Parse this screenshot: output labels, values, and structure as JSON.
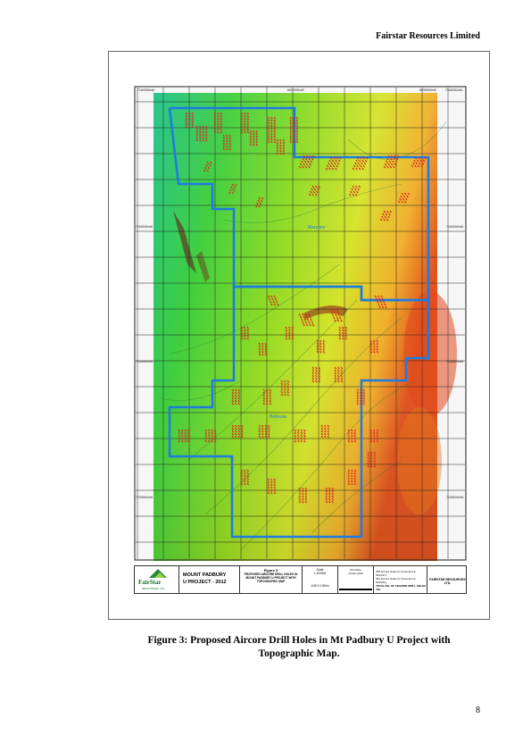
{
  "header": {
    "company": "Fairstar Resources Limited"
  },
  "map": {
    "grid_labels": {
      "top_left": "7160000mN",
      "top_mid": "6910000mE",
      "top_right_e": "6930000mE",
      "top_right": "7160000mN",
      "left_1": "7150000mN",
      "right_1": "7150000mN",
      "left_2": "7140000mN",
      "right_2": "7140000mN",
      "left_3": "7130000mN",
      "right_3": "7130000mN",
      "area_north": "Marymia",
      "area_south": "Bellevue"
    },
    "colors": {
      "tenement": "#1e7be0",
      "drill_hole": "#d9231f"
    }
  },
  "title_block": {
    "logo_name": "FairStar",
    "logo_sub": "RESOURCES LTD",
    "project_line1": "MOUNT PADBURY",
    "project_line2": "U PROJECT - 2012",
    "figure_no": "Figure 3",
    "figure_desc": "PROPOSED AIRCORE DRILL HOLES IN MOUNT PADBURY U PROJECT WITH TOPOGRAPHIC MAP",
    "scale_label": "Scale",
    "scale_value": "1:100000",
    "plot_date_label": "Plot Date",
    "plot_date": "10-Apr-2012",
    "scale_bar_text": "1000   0   1000m",
    "notes_line1": "405 Aircore Holes (in Tenement E 52/2147)",
    "notes_line2": "391 Aircore Holes (in Tenement E 52/2150)",
    "notes_line3": "TOTAL NO. OF AIRCORE DRILL HOLES 796",
    "company": "FAIRSTAR RESOURCES LTD."
  },
  "caption_line1": "Figure 3: Proposed Aircore Drill Holes in Mt Padbury U Project   with",
  "caption_line2": "Topographic Map.",
  "page_number": "8"
}
